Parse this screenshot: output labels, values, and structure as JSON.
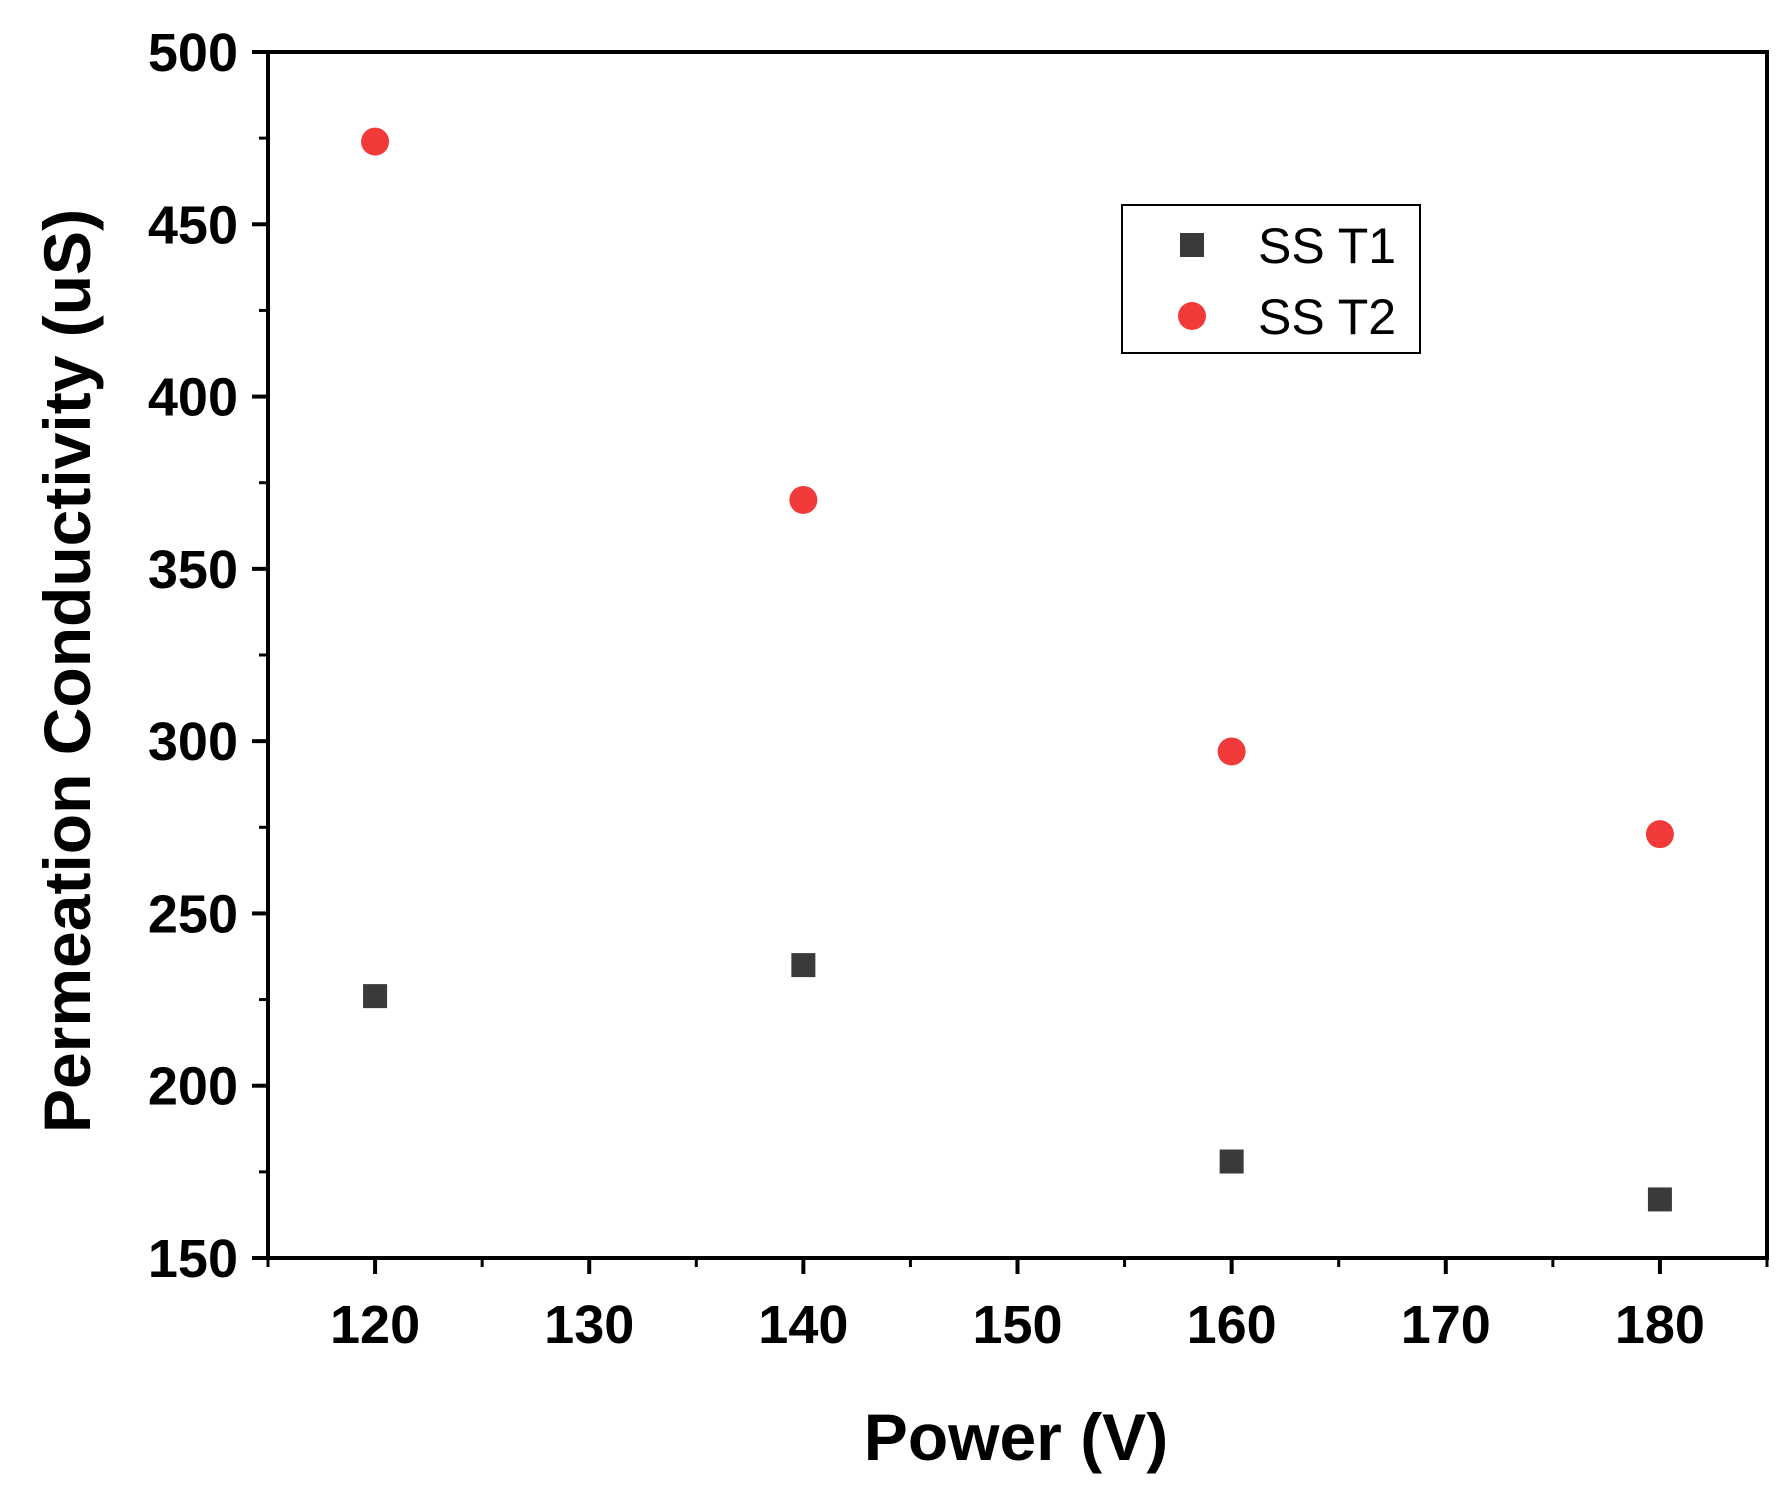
{
  "chart_data": {
    "type": "scatter",
    "title": "",
    "xlabel": "Power (V)",
    "ylabel": "Permeation Conductivity (uS)",
    "xlim": [
      115,
      185
    ],
    "ylim": [
      150,
      500
    ],
    "x_ticks": [
      120,
      130,
      140,
      150,
      160,
      170,
      180
    ],
    "y_ticks": [
      150,
      200,
      250,
      300,
      350,
      400,
      450,
      500
    ],
    "grid": false,
    "legend_position": "top-right",
    "series": [
      {
        "name": "SS T1",
        "marker": "square",
        "color": "#3a3a3a",
        "x": [
          120,
          140,
          160,
          180
        ],
        "y": [
          226,
          235,
          178,
          167
        ]
      },
      {
        "name": "SS T2",
        "marker": "circle",
        "color": "#f23a3a",
        "x": [
          120,
          140,
          160,
          180
        ],
        "y": [
          474,
          370,
          297,
          273
        ]
      }
    ]
  }
}
